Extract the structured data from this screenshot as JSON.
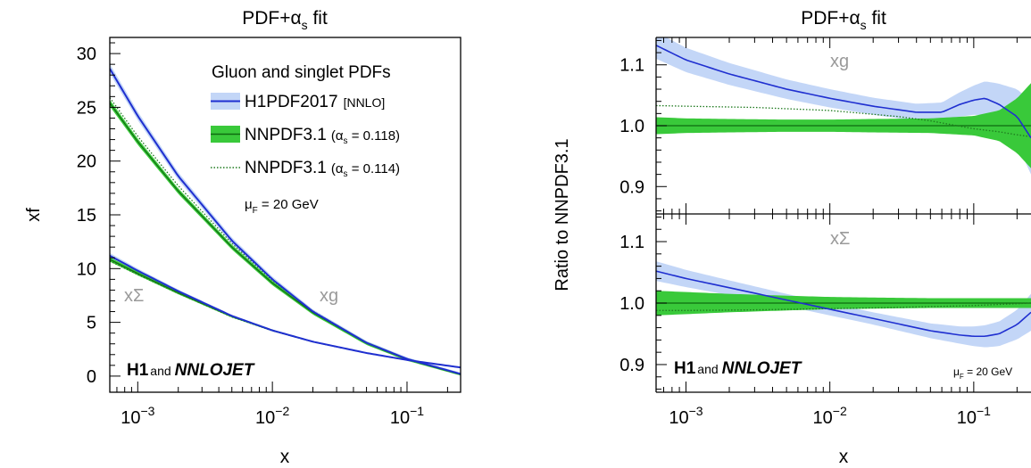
{
  "chart_data": [
    {
      "type": "line",
      "title": "PDF+αs fit",
      "title_parts": {
        "main": "PDF+α",
        "sub": "s",
        "tail": " fit"
      },
      "xlabel": "x",
      "ylabel": "xf",
      "x_scale": "log",
      "xlim": [
        0.00062,
        0.25
      ],
      "ylim": [
        -1.5,
        31.5
      ],
      "x_ticks": [
        {
          "value": 0.001,
          "base": "10",
          "exp": "−3"
        },
        {
          "value": 0.01,
          "base": "10",
          "exp": "−2"
        },
        {
          "value": 0.1,
          "base": "10",
          "exp": "−1"
        }
      ],
      "y_ticks": [
        0,
        5,
        10,
        15,
        20,
        25,
        30
      ],
      "legend": {
        "placement": "top-right",
        "header": "Gluon and singlet PDFs",
        "entries": [
          {
            "name": "H1PDF2017",
            "tag": "[NNLO]",
            "style": "band+line",
            "band": "#c3d6f7",
            "line": "#1f2fd0"
          },
          {
            "name": "NNPDF3.1",
            "param": "(α",
            "param_sub": "s",
            "param_val": " = 0.118)",
            "style": "band+line",
            "band": "#39c93a",
            "line": "#0f6b10"
          },
          {
            "name": "NNPDF3.1",
            "param": "(α",
            "param_sub": "s",
            "param_val": " = 0.114)",
            "style": "dotted",
            "line": "#1f7a1f"
          }
        ]
      },
      "annotations": {
        "scale_label": "μ",
        "scale_sub": "F",
        "scale_value": " = 20 GeV",
        "label_xg": "xg",
        "label_xsigma": "xΣ",
        "brand_bold": "H1",
        "brand_and": "and",
        "brand_italic": "NNLOJET"
      },
      "series": [
        {
          "name": "H1PDF2017 xg",
          "x": [
            0.00062,
            0.001,
            0.002,
            0.005,
            0.01,
            0.02,
            0.05,
            0.1,
            0.25
          ],
          "y": [
            28.6,
            24.2,
            18.6,
            12.6,
            9.0,
            6.0,
            3.1,
            1.6,
            0.2
          ],
          "band": [
            0.45,
            0.4,
            0.35,
            0.3,
            0.25,
            0.2,
            0.18,
            0.15,
            0.12
          ]
        },
        {
          "name": "NNPDF3.1 (αs = 0.118) xg",
          "x": [
            0.00062,
            0.001,
            0.002,
            0.005,
            0.01,
            0.02,
            0.05,
            0.1,
            0.25
          ],
          "y": [
            25.4,
            21.8,
            17.2,
            12.0,
            8.65,
            5.9,
            3.05,
            1.55,
            0.15
          ],
          "band": [
            0.3,
            0.28,
            0.25,
            0.22,
            0.2,
            0.18,
            0.15,
            0.12,
            0.1
          ]
        },
        {
          "name": "NNPDF3.1 (αs = 0.114) xg",
          "x": [
            0.00062,
            0.001,
            0.002,
            0.005,
            0.01,
            0.02,
            0.05,
            0.1,
            0.25
          ],
          "y": [
            25.9,
            22.3,
            17.7,
            12.35,
            8.9,
            6.05,
            3.1,
            1.55,
            0.15
          ]
        },
        {
          "name": "H1PDF2017 xΣ",
          "x": [
            0.00062,
            0.001,
            0.002,
            0.005,
            0.01,
            0.02,
            0.05,
            0.1,
            0.25
          ],
          "y": [
            11.2,
            9.8,
            7.9,
            5.6,
            4.25,
            3.2,
            2.15,
            1.5,
            0.8
          ],
          "band": [
            0.25,
            0.2,
            0.15,
            0.1,
            0.08,
            0.06,
            0.05,
            0.04,
            0.03
          ]
        },
        {
          "name": "NNPDF3.1 (αs = 0.118) xΣ",
          "x": [
            0.00062,
            0.001,
            0.002,
            0.005,
            0.01,
            0.02,
            0.05,
            0.1,
            0.25
          ],
          "y": [
            10.85,
            9.55,
            7.75,
            5.55,
            4.25,
            3.2,
            2.15,
            1.5,
            0.8
          ],
          "band": [
            0.2,
            0.18,
            0.14,
            0.1,
            0.08,
            0.06,
            0.05,
            0.04,
            0.03
          ]
        },
        {
          "name": "NNPDF3.1 (αs = 0.114) xΣ",
          "x": [
            0.00062,
            0.001,
            0.002,
            0.005,
            0.01,
            0.02,
            0.05,
            0.1,
            0.25
          ],
          "y": [
            10.7,
            9.45,
            7.7,
            5.5,
            4.22,
            3.18,
            2.14,
            1.5,
            0.8
          ]
        }
      ]
    },
    {
      "type": "line",
      "title": "PDF+αs fit",
      "title_parts": {
        "main": "PDF+α",
        "sub": "s",
        "tail": " fit"
      },
      "xlabel": "x",
      "ylabel": "Ratio to NNPDF3.1",
      "x_scale": "log",
      "xlim": [
        0.00062,
        0.25
      ],
      "x_ticks": [
        {
          "value": 0.001,
          "base": "10",
          "exp": "−3"
        },
        {
          "value": 0.01,
          "base": "10",
          "exp": "−2"
        },
        {
          "value": 0.1,
          "base": "10",
          "exp": "−1"
        }
      ],
      "annotations": {
        "scale_label": "μ",
        "scale_sub": "F",
        "scale_value": " = 20 GeV",
        "brand_bold": "H1",
        "brand_and": "and",
        "brand_italic": "NNLOJET"
      },
      "panels": [
        {
          "label": "xg",
          "ylim": [
            0.855,
            1.145
          ],
          "y_ticks": [
            0.9,
            1.0,
            1.1
          ],
          "y_tick_labels": [
            "0.9",
            "1.0",
            "1.1"
          ],
          "series": [
            {
              "name": "H1PDF2017",
              "x": [
                0.00062,
                0.001,
                0.002,
                0.005,
                0.01,
                0.02,
                0.04,
                0.06,
                0.08,
                0.1,
                0.12,
                0.15,
                0.2,
                0.25
              ],
              "y": [
                1.132,
                1.108,
                1.085,
                1.06,
                1.045,
                1.032,
                1.022,
                1.022,
                1.035,
                1.042,
                1.045,
                1.035,
                1.015,
                0.98
              ],
              "band": [
                0.022,
                0.02,
                0.018,
                0.016,
                0.015,
                0.014,
                0.014,
                0.016,
                0.02,
                0.024,
                0.028,
                0.034,
                0.045,
                0.06
              ]
            },
            {
              "name": "NNPDF3.1 (αs = 0.118)",
              "x": [
                0.00062,
                0.001,
                0.002,
                0.005,
                0.01,
                0.02,
                0.05,
                0.1,
                0.15,
                0.2,
                0.25
              ],
              "y": [
                1.0,
                1.0,
                1.0,
                1.0,
                1.0,
                1.0,
                1.0,
                1.0,
                1.0,
                1.0,
                1.0
              ],
              "band": [
                0.014,
                0.012,
                0.011,
                0.01,
                0.01,
                0.011,
                0.012,
                0.016,
                0.025,
                0.045,
                0.07
              ]
            },
            {
              "name": "NNPDF3.1 (αs = 0.114)",
              "x": [
                0.00062,
                0.001,
                0.003,
                0.01,
                0.03,
                0.05,
                0.1,
                0.15,
                0.2,
                0.25
              ],
              "y": [
                1.033,
                1.032,
                1.03,
                1.025,
                1.015,
                1.008,
                0.995,
                0.99,
                0.985,
                0.982
              ]
            }
          ]
        },
        {
          "label": "xΣ",
          "ylim": [
            0.855,
            1.145
          ],
          "y_ticks": [
            0.9,
            1.0,
            1.1
          ],
          "y_tick_labels": [
            "0.9",
            "1.0",
            "1.1"
          ],
          "series": [
            {
              "name": "H1PDF2017",
              "x": [
                0.00062,
                0.001,
                0.002,
                0.005,
                0.01,
                0.02,
                0.05,
                0.08,
                0.1,
                0.12,
                0.15,
                0.2,
                0.25
              ],
              "y": [
                1.052,
                1.04,
                1.025,
                1.005,
                0.99,
                0.975,
                0.955,
                0.948,
                0.946,
                0.946,
                0.95,
                0.965,
                0.985
              ],
              "band": [
                0.016,
                0.014,
                0.012,
                0.01,
                0.01,
                0.01,
                0.012,
                0.014,
                0.016,
                0.018,
                0.02,
                0.024,
                0.03
              ]
            },
            {
              "name": "NNPDF3.1 (αs = 0.118)",
              "x": [
                0.00062,
                0.001,
                0.002,
                0.005,
                0.01,
                0.02,
                0.05,
                0.1,
                0.25
              ],
              "y": [
                1.0,
                1.0,
                1.0,
                1.0,
                1.0,
                1.0,
                1.0,
                1.0,
                1.0
              ],
              "band": [
                0.02,
                0.018,
                0.015,
                0.012,
                0.01,
                0.009,
                0.008,
                0.008,
                0.008
              ]
            },
            {
              "name": "NNPDF3.1 (αs = 0.114)",
              "x": [
                0.00062,
                0.001,
                0.003,
                0.01,
                0.03,
                0.1,
                0.25
              ],
              "y": [
                0.988,
                0.988,
                0.989,
                0.991,
                0.993,
                0.996,
                1.0
              ]
            }
          ]
        }
      ]
    }
  ]
}
